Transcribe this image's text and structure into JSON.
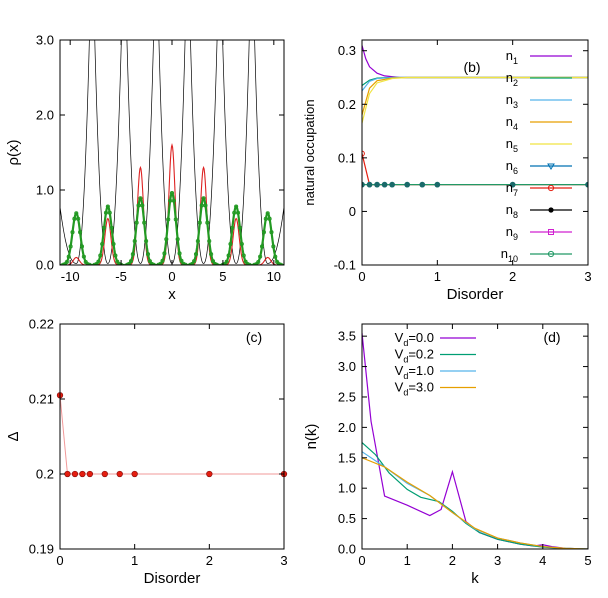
{
  "chart_data": [
    {
      "type": "line",
      "panel": "a",
      "xlabel": "x",
      "ylabel": "ρ(x)",
      "xlim": [
        -11,
        11
      ],
      "ylim": [
        0,
        3.0
      ],
      "xticks": [
        -10,
        -5,
        0,
        5,
        10
      ],
      "yticks": [
        0,
        1,
        2,
        3
      ],
      "xtick_labels": [
        "-10",
        "-5",
        "0",
        "5",
        "10"
      ],
      "ytick_labels": [
        "0.0",
        "1.0",
        "2.0",
        "3.0"
      ],
      "peaks": [
        -9.4,
        -6.3,
        -3.1,
        0,
        3.1,
        6.3,
        9.4
      ],
      "series": [
        {
          "color": "#000000",
          "style": "potential",
          "values": [
            3.0,
            3.0,
            3.0,
            3.0,
            3.0,
            3.0,
            3.0
          ]
        },
        {
          "color": "#dd2222",
          "style": "line",
          "values": [
            0.1,
            0.62,
            1.3,
            1.6,
            1.3,
            0.62,
            0.1
          ]
        },
        {
          "color": "#229922",
          "style": "markers",
          "values": [
            0.69,
            0.78,
            0.89,
            0.96,
            0.89,
            0.78,
            0.69
          ]
        }
      ]
    },
    {
      "type": "line",
      "panel": "b",
      "annotation": "(b)",
      "xlabel": "Disorder",
      "ylabel": "natural occupation",
      "xlim": [
        0,
        3
      ],
      "ylim": [
        -0.1,
        0.32
      ],
      "xticks": [
        0,
        1,
        2,
        3
      ],
      "yticks": [
        -0.1,
        0,
        0.1,
        0.2,
        0.3
      ],
      "xtick_labels": [
        "0",
        "1",
        "2",
        "3"
      ],
      "ytick_labels": [
        "-0.1",
        "0",
        "0.1",
        "0.2",
        "0.3"
      ],
      "legend_position": "top-right",
      "legend": [
        {
          "base": "n",
          "sub": "1",
          "color": "#9400d3",
          "marker": "none"
        },
        {
          "base": "n",
          "sub": "2",
          "color": "#009e73",
          "marker": "none"
        },
        {
          "base": "n",
          "sub": "3",
          "color": "#56b4e9",
          "marker": "none"
        },
        {
          "base": "n",
          "sub": "4",
          "color": "#e69f00",
          "marker": "none"
        },
        {
          "base": "n",
          "sub": "5",
          "color": "#f0e442",
          "marker": "none"
        },
        {
          "base": "n",
          "sub": "6",
          "color": "#0072b2",
          "marker": "triangle"
        },
        {
          "base": "n",
          "sub": "7",
          "color": "#e51e10",
          "marker": "circle"
        },
        {
          "base": "n",
          "sub": "8",
          "color": "#000000",
          "marker": "dot"
        },
        {
          "base": "n",
          "sub": "9",
          "color": "#d020d0",
          "marker": "square"
        },
        {
          "base": "n",
          "sub": "10",
          "color": "#229966",
          "marker": "circle"
        }
      ],
      "curves": [
        {
          "color": "#9400d3",
          "points": [
            [
              0,
              0.31
            ],
            [
              0.05,
              0.285
            ],
            [
              0.1,
              0.27
            ],
            [
              0.2,
              0.258
            ],
            [
              0.3,
              0.253
            ],
            [
              0.5,
              0.25
            ],
            [
              1,
              0.25
            ],
            [
              2,
              0.25
            ],
            [
              3,
              0.25
            ]
          ]
        },
        {
          "color": "#009e73",
          "points": [
            [
              0,
              0.235
            ],
            [
              0.1,
              0.245
            ],
            [
              0.2,
              0.249
            ],
            [
              0.4,
              0.25
            ],
            [
              3,
              0.25
            ]
          ]
        },
        {
          "color": "#56b4e9",
          "points": [
            [
              0,
              0.225
            ],
            [
              0.1,
              0.243
            ],
            [
              0.2,
              0.248
            ],
            [
              0.4,
              0.25
            ],
            [
              3,
              0.25
            ]
          ]
        },
        {
          "color": "#e69f00",
          "points": [
            [
              0,
              0.18
            ],
            [
              0.1,
              0.23
            ],
            [
              0.2,
              0.244
            ],
            [
              0.4,
              0.249
            ],
            [
              0.6,
              0.25
            ],
            [
              3,
              0.25
            ]
          ]
        },
        {
          "color": "#f0e442",
          "points": [
            [
              0,
              0.165
            ],
            [
              0.1,
              0.22
            ],
            [
              0.2,
              0.24
            ],
            [
              0.4,
              0.248
            ],
            [
              0.6,
              0.25
            ],
            [
              3,
              0.25
            ]
          ]
        },
        {
          "color": "#e51e10",
          "points": [
            [
              0,
              0.108
            ],
            [
              0.1,
              0.05
            ],
            [
              3,
              0.05
            ]
          ]
        }
      ],
      "flat_line": {
        "color": "#229966",
        "y": 0.05
      },
      "marker_series": {
        "color": "#1a6a6a",
        "x": [
          0,
          0.1,
          0.2,
          0.3,
          0.4,
          0.6,
          0.8,
          1,
          2,
          3
        ],
        "y": [
          0.05,
          0.05,
          0.05,
          0.05,
          0.05,
          0.05,
          0.05,
          0.05,
          0.05,
          0.05
        ]
      },
      "marker_highlight": {
        "color": "#e51e10",
        "x": 0,
        "y": 0.108
      }
    },
    {
      "type": "scatter",
      "panel": "c",
      "annotation": "(c)",
      "xlabel": "Disorder",
      "ylabel": "Δ",
      "xlim": [
        0,
        3
      ],
      "ylim": [
        0.19,
        0.22
      ],
      "xticks": [
        0,
        1,
        2,
        3
      ],
      "yticks": [
        0.19,
        0.2,
        0.21,
        0.22
      ],
      "xtick_labels": [
        "0",
        "1",
        "2",
        "3"
      ],
      "ytick_labels": [
        "0.19",
        "0.2",
        "0.21",
        "0.22"
      ],
      "color": "#e51e10",
      "x": [
        0,
        0.1,
        0.2,
        0.3,
        0.4,
        0.6,
        0.8,
        1,
        2,
        3
      ],
      "y": [
        0.2105,
        0.2,
        0.2,
        0.2,
        0.2,
        0.2,
        0.2,
        0.2,
        0.2,
        0.2
      ]
    },
    {
      "type": "line",
      "panel": "d",
      "annotation": "(d)",
      "xlabel": "k",
      "ylabel": "n(k)",
      "xlim": [
        0,
        5
      ],
      "ylim": [
        0,
        3.7
      ],
      "xticks": [
        0,
        1,
        2,
        3,
        4,
        5
      ],
      "yticks": [
        0,
        0.5,
        1,
        1.5,
        2,
        2.5,
        3,
        3.5
      ],
      "xtick_labels": [
        "0",
        "1",
        "2",
        "3",
        "4",
        "5"
      ],
      "ytick_labels": [
        "0.0",
        "0.5",
        "1.0",
        "1.5",
        "2.0",
        "2.5",
        "3.0",
        "3.5"
      ],
      "legend_position": "top-left",
      "legend": [
        {
          "base": "V",
          "sub": "d",
          "suffix": "=0.0",
          "color": "#9400d3"
        },
        {
          "base": "V",
          "sub": "d",
          "suffix": "=0.2",
          "color": "#009e73"
        },
        {
          "base": "V",
          "sub": "d",
          "suffix": "=1.0",
          "color": "#56b4e9"
        },
        {
          "base": "V",
          "sub": "d",
          "suffix": "=3.0",
          "color": "#e69f00"
        }
      ],
      "curves": [
        {
          "color": "#9400d3",
          "points": [
            [
              0,
              3.55
            ],
            [
              0.2,
              2.1
            ],
            [
              0.5,
              0.87
            ],
            [
              1,
              0.72
            ],
            [
              1.5,
              0.55
            ],
            [
              1.75,
              0.65
            ],
            [
              2,
              1.27
            ],
            [
              2.3,
              0.45
            ],
            [
              2.6,
              0.27
            ],
            [
              3,
              0.16
            ],
            [
              3.5,
              0.08
            ],
            [
              3.8,
              0.05
            ],
            [
              4,
              0.07
            ],
            [
              4.2,
              0.04
            ],
            [
              4.5,
              0.01
            ],
            [
              5,
              0
            ]
          ]
        },
        {
          "color": "#009e73",
          "points": [
            [
              0,
              1.75
            ],
            [
              0.3,
              1.55
            ],
            [
              0.6,
              1.25
            ],
            [
              1,
              0.98
            ],
            [
              1.3,
              0.85
            ],
            [
              1.7,
              0.78
            ],
            [
              2,
              0.62
            ],
            [
              2.3,
              0.42
            ],
            [
              2.6,
              0.27
            ],
            [
              3,
              0.16
            ],
            [
              3.5,
              0.08
            ],
            [
              4,
              0.03
            ],
            [
              4.5,
              0.01
            ],
            [
              5,
              0
            ]
          ]
        },
        {
          "color": "#56b4e9",
          "points": [
            [
              0,
              1.6
            ],
            [
              0.5,
              1.35
            ],
            [
              1,
              1.08
            ],
            [
              1.5,
              0.88
            ],
            [
              2,
              0.6
            ],
            [
              2.5,
              0.33
            ],
            [
              3,
              0.18
            ],
            [
              3.5,
              0.1
            ],
            [
              4,
              0.04
            ],
            [
              4.5,
              0.01
            ],
            [
              5,
              0
            ]
          ]
        },
        {
          "color": "#e69f00",
          "points": [
            [
              0,
              1.5
            ],
            [
              0.5,
              1.35
            ],
            [
              1,
              1.1
            ],
            [
              1.5,
              0.88
            ],
            [
              2,
              0.6
            ],
            [
              2.5,
              0.34
            ],
            [
              3,
              0.18
            ],
            [
              3.5,
              0.1
            ],
            [
              4,
              0.04
            ],
            [
              4.5,
              0.01
            ],
            [
              5,
              0
            ]
          ]
        }
      ]
    }
  ]
}
